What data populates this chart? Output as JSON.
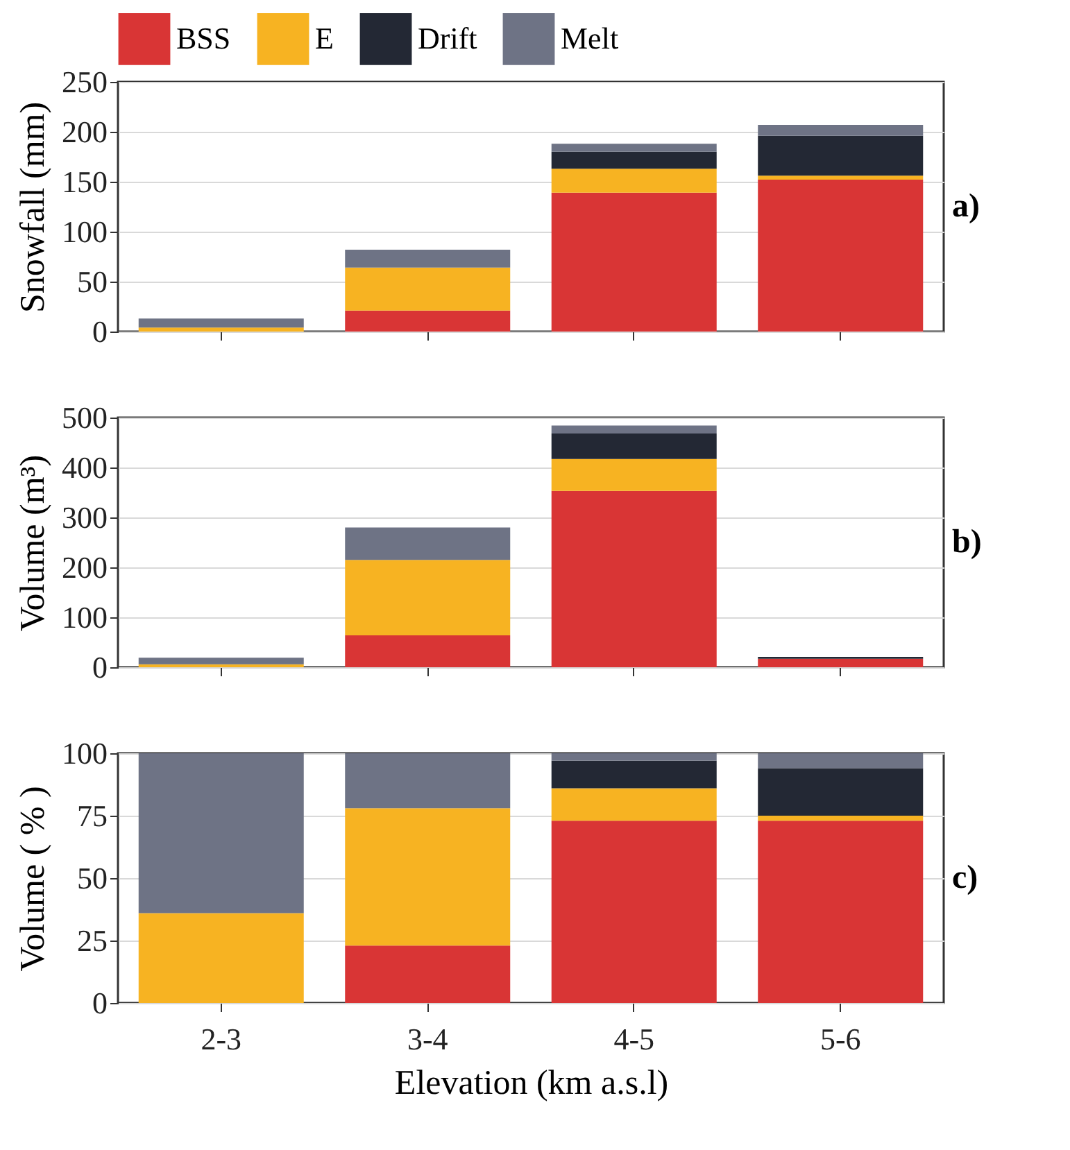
{
  "chart_data": [
    {
      "type": "bar",
      "stacked": true,
      "categories": [
        null,
        null,
        null,
        null
      ],
      "ylabel": "Snowfall (mm)",
      "ylim": [
        0,
        250
      ],
      "yticks": [
        0,
        50,
        100,
        150,
        200,
        250
      ],
      "grid": "y",
      "tick_labels": "y",
      "legend": "top",
      "annotations": [
        "a)"
      ],
      "series": [
        {
          "name": "BSS",
          "color": "#d93535",
          "values": [
            0,
            21,
            139,
            152
          ]
        },
        {
          "name": "E",
          "color": "#f7b322",
          "values": [
            4,
            43,
            24,
            4
          ]
        },
        {
          "name": "Drift",
          "color": "#232834",
          "values": [
            0,
            0,
            17,
            40
          ]
        },
        {
          "name": "Melt",
          "color": "#6e7385",
          "values": [
            9,
            18,
            8,
            11
          ]
        }
      ]
    },
    {
      "type": "bar",
      "stacked": true,
      "categories": [
        null,
        null,
        null,
        null
      ],
      "ylabel": "Volume (m³)",
      "ylim": [
        0,
        500
      ],
      "yticks": [
        0,
        100,
        200,
        300,
        400,
        500
      ],
      "grid": "y",
      "tick_labels": "y",
      "annotations": [
        "b)"
      ],
      "series": [
        {
          "color": "#d93535",
          "values": [
            0,
            64,
            353,
            17
          ]
        },
        {
          "color": "#f7b322",
          "values": [
            6,
            151,
            64,
            0
          ]
        },
        {
          "color": "#232834",
          "values": [
            0,
            0,
            51,
            4
          ]
        },
        {
          "color": "#6e7385",
          "values": [
            13,
            65,
            16,
            0
          ]
        }
      ]
    },
    {
      "type": "bar",
      "stacked": true,
      "categories": [
        "2-3",
        "3-4",
        "4-5",
        "5-6"
      ],
      "xlabel": "Elevation (km a.s.l)",
      "ylabel": "Volume ( % )",
      "ylim": [
        0,
        100
      ],
      "yticks": [
        0,
        25,
        50,
        75,
        100
      ],
      "grid": "y",
      "annotations": [
        "c)"
      ],
      "series": [
        {
          "color": "#d93535",
          "values": [
            0,
            23,
            73,
            73
          ]
        },
        {
          "color": "#f7b322",
          "values": [
            36,
            55,
            13,
            2
          ]
        },
        {
          "color": "#232834",
          "values": [
            0,
            0,
            11,
            19
          ]
        },
        {
          "color": "#6e7385",
          "values": [
            64,
            22,
            3,
            6
          ]
        }
      ]
    }
  ]
}
